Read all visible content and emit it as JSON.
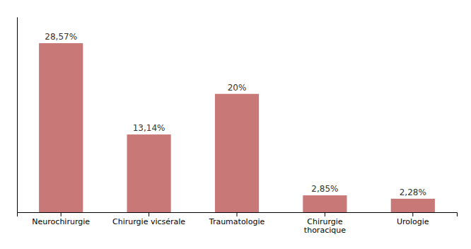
{
  "chart_data": {
    "type": "bar",
    "categories": [
      "Neurochirurgie",
      "Chirurgie vicsérale",
      "Traumatologie",
      "Chirurgie\nthoracique",
      "Urologie"
    ],
    "values": [
      28.57,
      13.14,
      20.0,
      2.85,
      2.28
    ],
    "value_labels": [
      "28,57%",
      "13,14%",
      "20%",
      "2,85%",
      "2,28%"
    ],
    "color": "#c97878",
    "ylim": [
      0,
      33
    ],
    "data_labels": true,
    "tick_labels": "x"
  }
}
